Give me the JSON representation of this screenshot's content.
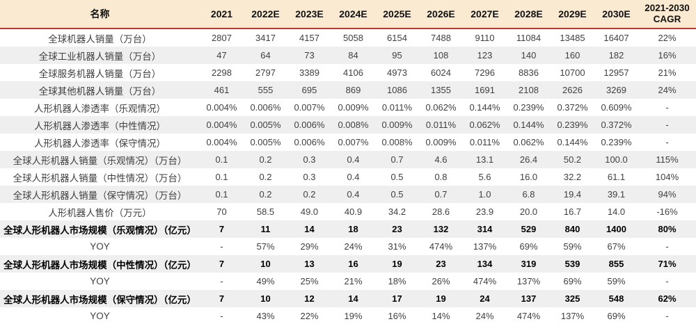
{
  "meta": {
    "description_of_view": "Forecast table of global robot / humanoid robot sales and market size 2021-2030",
    "colors": {
      "header_background": "#FBEAD2",
      "header_rule_red": "#C13531",
      "row_stripe_gray": "#EFEFEF",
      "body_text": "#3F3F3F",
      "bold_text": "#000000"
    }
  },
  "chart_data": {
    "type": "table",
    "columns": [
      "名称",
      "2021",
      "2022E",
      "2023E",
      "2024E",
      "2025E",
      "2026E",
      "2027E",
      "2028E",
      "2029E",
      "2030E",
      "2021-2030 CAGR"
    ],
    "rows": [
      {
        "name": "全球机器人销量（万台）",
        "bold": false,
        "values": [
          "2807",
          "3417",
          "4157",
          "5058",
          "6154",
          "7488",
          "9110",
          "11084",
          "13485",
          "16407",
          "22%"
        ]
      },
      {
        "name": "全球工业机器人销量（万台）",
        "bold": false,
        "values": [
          "47",
          "64",
          "73",
          "84",
          "95",
          "108",
          "123",
          "140",
          "160",
          "182",
          "16%"
        ]
      },
      {
        "name": "全球服务机器人销量（万台）",
        "bold": false,
        "values": [
          "2298",
          "2797",
          "3389",
          "4106",
          "4973",
          "6024",
          "7296",
          "8836",
          "10700",
          "12957",
          "21%"
        ]
      },
      {
        "name": "全球其他机器人销量（万台）",
        "bold": false,
        "values": [
          "461",
          "555",
          "695",
          "869",
          "1086",
          "1355",
          "1691",
          "2108",
          "2626",
          "3269",
          "24%"
        ]
      },
      {
        "name": "人形机器人渗透率（乐观情况）",
        "bold": false,
        "values": [
          "0.004%",
          "0.006%",
          "0.007%",
          "0.009%",
          "0.011%",
          "0.062%",
          "0.144%",
          "0.239%",
          "0.372%",
          "0.609%",
          "-"
        ]
      },
      {
        "name": "人形机器人渗透率（中性情况）",
        "bold": false,
        "values": [
          "0.004%",
          "0.005%",
          "0.006%",
          "0.008%",
          "0.009%",
          "0.011%",
          "0.062%",
          "0.144%",
          "0.239%",
          "0.372%",
          "-"
        ]
      },
      {
        "name": "人形机器人渗透率（保守情况）",
        "bold": false,
        "values": [
          "0.004%",
          "0.005%",
          "0.006%",
          "0.007%",
          "0.008%",
          "0.009%",
          "0.011%",
          "0.062%",
          "0.144%",
          "0.239%",
          "-"
        ]
      },
      {
        "name": "全球人形机器人销量（乐观情况）（万台）",
        "bold": false,
        "values": [
          "0.1",
          "0.2",
          "0.3",
          "0.4",
          "0.7",
          "4.6",
          "13.1",
          "26.4",
          "50.2",
          "100.0",
          "115%"
        ]
      },
      {
        "name": "全球人形机器人销量（中性情况）（万台）",
        "bold": false,
        "values": [
          "0.1",
          "0.2",
          "0.3",
          "0.4",
          "0.5",
          "0.8",
          "5.6",
          "16.0",
          "32.2",
          "61.1",
          "104%"
        ]
      },
      {
        "name": "全球人形机器人销量（保守情况）（万台）",
        "bold": false,
        "values": [
          "0.1",
          "0.2",
          "0.2",
          "0.4",
          "0.5",
          "0.7",
          "1.0",
          "6.8",
          "19.4",
          "39.1",
          "94%"
        ]
      },
      {
        "name": "人形机器人售价（万元）",
        "bold": false,
        "values": [
          "70",
          "58.5",
          "49.0",
          "40.9",
          "34.2",
          "28.6",
          "23.9",
          "20.0",
          "16.7",
          "14.0",
          "-16%"
        ]
      },
      {
        "name": "全球人形机器人市场规模（乐观情况）（亿元）",
        "bold": true,
        "values": [
          "7",
          "11",
          "14",
          "18",
          "23",
          "132",
          "314",
          "529",
          "840",
          "1400",
          "80%"
        ]
      },
      {
        "name": "YOY",
        "bold": false,
        "values": [
          "-",
          "57%",
          "29%",
          "24%",
          "31%",
          "474%",
          "137%",
          "69%",
          "59%",
          "67%",
          "-"
        ]
      },
      {
        "name": "全球人形机器人市场规模（中性情况）（亿元）",
        "bold": true,
        "values": [
          "7",
          "10",
          "13",
          "16",
          "19",
          "23",
          "134",
          "319",
          "539",
          "855",
          "71%"
        ]
      },
      {
        "name": "YOY",
        "bold": false,
        "values": [
          "-",
          "49%",
          "25%",
          "21%",
          "18%",
          "26%",
          "474%",
          "137%",
          "69%",
          "59%",
          "-"
        ]
      },
      {
        "name": "全球人形机器人市场规模（保守情况）（亿元）",
        "bold": true,
        "values": [
          "7",
          "10",
          "12",
          "14",
          "17",
          "19",
          "24",
          "137",
          "325",
          "548",
          "62%"
        ]
      },
      {
        "name": "YOY",
        "bold": false,
        "values": [
          "-",
          "43%",
          "22%",
          "19%",
          "16%",
          "14%",
          "24%",
          "474%",
          "137%",
          "69%",
          "-"
        ]
      }
    ]
  }
}
